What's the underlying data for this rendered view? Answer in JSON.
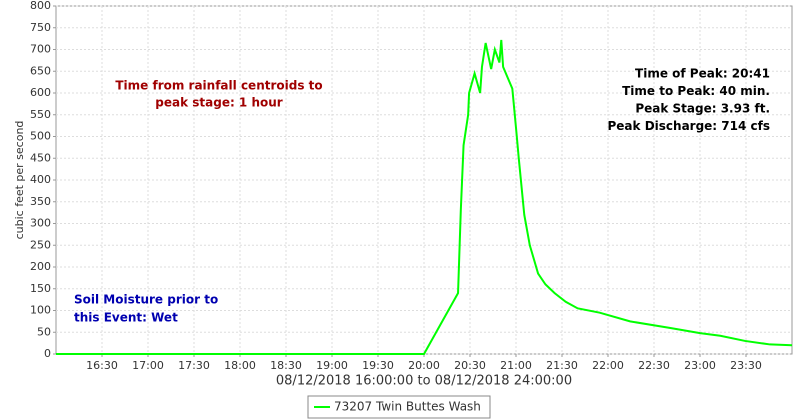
{
  "chart_data": {
    "type": "line",
    "ylabel": "cubic feet per second",
    "xlabel": "08/12/2018 16:00:00 to 08/12/2018 24:00:00",
    "annotations": {
      "rainfall": [
        "Time from rainfall centroids to",
        "peak stage: 1 hour"
      ],
      "peak": [
        "Time of Peak: 20:41",
        "Time to Peak: 40 min.",
        "Peak Stage: 3.93 ft.",
        "Peak Discharge: 714 cfs"
      ],
      "soil": [
        "Soil Moisture prior to",
        "this Event: Wet"
      ]
    },
    "x": [
      16.0,
      20.0,
      20.37,
      20.4,
      20.43,
      20.48,
      20.49,
      20.55,
      20.61,
      20.63,
      20.67,
      20.73,
      20.77,
      20.82,
      20.84,
      20.86,
      20.96,
      21.0,
      21.03,
      21.09,
      21.15,
      21.24,
      21.32,
      21.42,
      21.54,
      21.67,
      21.91,
      22.24,
      22.67,
      23.0,
      23.22,
      23.49,
      23.76,
      24.0
    ],
    "series": [
      {
        "name": "73207 Twin Buttes Wash",
        "color": "#00ff00",
        "values": [
          0,
          0,
          140,
          330,
          480,
          550,
          600,
          645,
          600,
          660,
          715,
          655,
          700,
          670,
          722,
          660,
          610,
          520,
          450,
          320,
          250,
          185,
          160,
          140,
          120,
          105,
          95,
          75,
          60,
          48,
          42,
          30,
          22,
          20
        ]
      }
    ],
    "xlim": [
      16,
      24
    ],
    "xticks": [
      {
        "value": 16.5,
        "label": "16:30"
      },
      {
        "value": 17,
        "label": "17:00"
      },
      {
        "value": 17.5,
        "label": "17:30"
      },
      {
        "value": 18,
        "label": "18:00"
      },
      {
        "value": 18.5,
        "label": "18:30"
      },
      {
        "value": 19,
        "label": "19:00"
      },
      {
        "value": 19.5,
        "label": "19:30"
      },
      {
        "value": 20,
        "label": "20:00"
      },
      {
        "value": 20.5,
        "label": "20:30"
      },
      {
        "value": 21,
        "label": "21:00"
      },
      {
        "value": 21.5,
        "label": "21:30"
      },
      {
        "value": 22,
        "label": "22:00"
      },
      {
        "value": 22.5,
        "label": "22:30"
      },
      {
        "value": 23,
        "label": "23:00"
      },
      {
        "value": 23.5,
        "label": "23:30"
      }
    ],
    "ylim": [
      0,
      800
    ],
    "yticks": [
      0,
      50,
      100,
      150,
      200,
      250,
      300,
      350,
      400,
      450,
      500,
      550,
      600,
      650,
      700,
      750,
      800
    ],
    "grid": true
  }
}
